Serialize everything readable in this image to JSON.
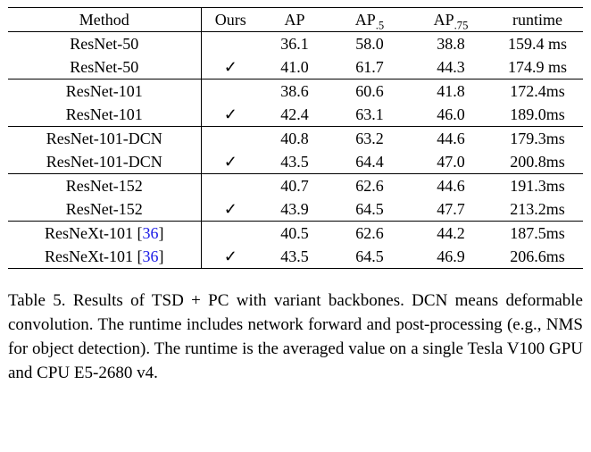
{
  "table": {
    "headers": {
      "method": "Method",
      "ours": "Ours",
      "ap": "AP",
      "ap50_sub": ".5",
      "ap75_sub": ".75",
      "runtime": "runtime"
    },
    "check_glyph": "✓",
    "rows": [
      {
        "method": "ResNet-50",
        "cite": "",
        "ours": false,
        "ap": "36.1",
        "ap50": "58.0",
        "ap75": "38.8",
        "runtime": "159.4 ms",
        "bold": false,
        "group_start": false
      },
      {
        "method": "ResNet-50",
        "cite": "",
        "ours": true,
        "ap": "41.0",
        "ap50": "61.7",
        "ap75": "44.3",
        "runtime": "174.9 ms",
        "bold": true,
        "group_start": false
      },
      {
        "method": "ResNet-101",
        "cite": "",
        "ours": false,
        "ap": "38.6",
        "ap50": "60.6",
        "ap75": "41.8",
        "runtime": "172.4ms",
        "bold": false,
        "group_start": true
      },
      {
        "method": "ResNet-101",
        "cite": "",
        "ours": true,
        "ap": "42.4",
        "ap50": "63.1",
        "ap75": "46.0",
        "runtime": "189.0ms",
        "bold": true,
        "group_start": false
      },
      {
        "method": "ResNet-101-DCN",
        "cite": "",
        "ours": false,
        "ap": "40.8",
        "ap50": "63.2",
        "ap75": "44.6",
        "runtime": "179.3ms",
        "bold": false,
        "group_start": true
      },
      {
        "method": "ResNet-101-DCN",
        "cite": "",
        "ours": true,
        "ap": "43.5",
        "ap50": "64.4",
        "ap75": "47.0",
        "runtime": "200.8ms",
        "bold": true,
        "group_start": false
      },
      {
        "method": "ResNet-152",
        "cite": "",
        "ours": false,
        "ap": "40.7",
        "ap50": "62.6",
        "ap75": "44.6",
        "runtime": "191.3ms",
        "bold": false,
        "group_start": true
      },
      {
        "method": "ResNet-152",
        "cite": "",
        "ours": true,
        "ap": "43.9",
        "ap50": "64.5",
        "ap75": "47.7",
        "runtime": "213.2ms",
        "bold": true,
        "group_start": false
      },
      {
        "method": "ResNeXt-101 ",
        "cite": "36",
        "ours": false,
        "ap": "40.5",
        "ap50": "62.6",
        "ap75": "44.2",
        "runtime": "187.5ms",
        "bold": false,
        "group_start": true
      },
      {
        "method": "ResNeXt-101 ",
        "cite": "36",
        "ours": true,
        "ap": "43.5",
        "ap50": "64.5",
        "ap75": "46.9",
        "runtime": "206.6ms",
        "bold": true,
        "group_start": false
      }
    ]
  },
  "caption": "Table 5. Results of TSD + PC with variant backbones. DCN means deformable convolution. The runtime includes network forward and post-processing (e.g., NMS for object detection). The runtime is the averaged value on a single Tesla V100 GPU and CPU E5-2680 v4.",
  "colors": {
    "citation": "#1a1ae6"
  }
}
